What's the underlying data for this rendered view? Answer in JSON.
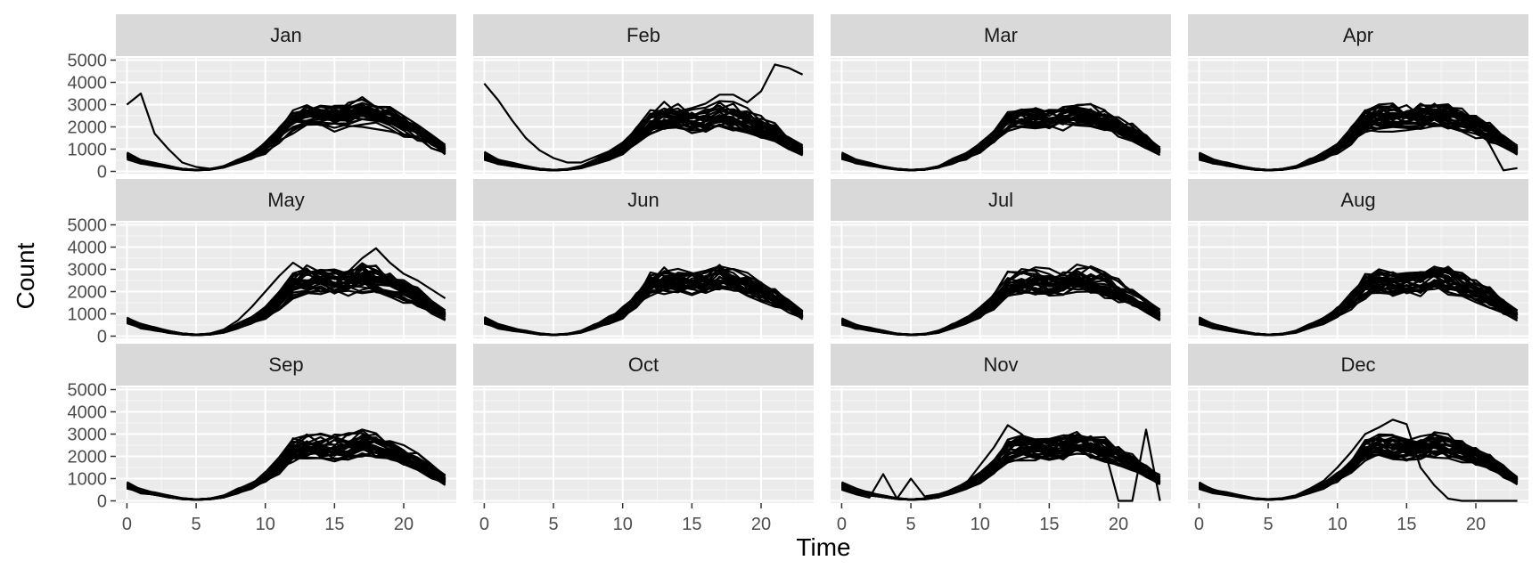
{
  "chart_data": {
    "type": "line",
    "facet": "small-multiples",
    "facets": [
      {
        "label": "Jan",
        "has_data": true
      },
      {
        "label": "Feb",
        "has_data": true
      },
      {
        "label": "Mar",
        "has_data": true
      },
      {
        "label": "Apr",
        "has_data": true
      },
      {
        "label": "May",
        "has_data": true
      },
      {
        "label": "Jun",
        "has_data": true
      },
      {
        "label": "Jul",
        "has_data": true
      },
      {
        "label": "Aug",
        "has_data": true
      },
      {
        "label": "Sep",
        "has_data": true
      },
      {
        "label": "Oct",
        "has_data": false
      },
      {
        "label": "Nov",
        "has_data": true
      },
      {
        "label": "Dec",
        "has_data": true
      }
    ],
    "xlabel": "Time",
    "ylabel": "Count",
    "x_ticks": [
      0,
      5,
      10,
      15,
      20
    ],
    "y_ticks": [
      0,
      1000,
      2000,
      3000,
      4000,
      5000
    ],
    "xlim": [
      -0.8,
      23.8
    ],
    "ylim": [
      -100,
      5100
    ],
    "grid": true,
    "legend": "none",
    "lines_per_facet": 28,
    "line_color": "#000000",
    "panel_background": "#ebebeb",
    "strip_background": "#d9d9d9",
    "typical_daily_profile": {
      "hours": [
        0,
        1,
        2,
        3,
        4,
        5,
        6,
        7,
        8,
        9,
        10,
        11,
        12,
        13,
        14,
        15,
        16,
        17,
        18,
        19,
        20,
        21,
        22,
        23
      ],
      "counts": [
        700,
        450,
        320,
        200,
        100,
        60,
        90,
        200,
        450,
        700,
        1050,
        1600,
        2300,
        2500,
        2450,
        2400,
        2450,
        2650,
        2500,
        2300,
        2050,
        1750,
        1350,
        950
      ]
    },
    "notable_series": [
      {
        "facet": "Jan",
        "hours": [
          0,
          1,
          2,
          3,
          4,
          5,
          6,
          7,
          8,
          9,
          10,
          11,
          12,
          13,
          14,
          15,
          16,
          17,
          18,
          19,
          20,
          21,
          22,
          23
        ],
        "counts": [
          3000,
          3500,
          1700,
          1000,
          400,
          200,
          120,
          220,
          500,
          800,
          1100,
          1550,
          2000,
          2200,
          2200,
          2150,
          2050,
          2000,
          1900,
          1800,
          1650,
          1500,
          1300,
          1100
        ]
      },
      {
        "facet": "Feb",
        "hours": [
          0,
          1,
          2,
          3,
          4,
          5,
          6,
          7,
          8,
          9,
          10,
          11,
          12,
          13,
          14,
          15,
          16,
          17,
          18,
          19,
          20,
          21,
          22,
          23
        ],
        "counts": [
          3950,
          3200,
          2300,
          1500,
          950,
          600,
          400,
          400,
          650,
          900,
          1300,
          1900,
          2450,
          2600,
          2700,
          2850,
          3050,
          3450,
          3450,
          3100,
          3600,
          4800,
          4650,
          4350
        ]
      },
      {
        "facet": "Apr",
        "hours": [
          0,
          1,
          2,
          3,
          4,
          5,
          6,
          7,
          8,
          9,
          10,
          11,
          12,
          13,
          14,
          15,
          16,
          17,
          18,
          19,
          20,
          21,
          22,
          23
        ],
        "counts": [
          600,
          400,
          280,
          150,
          80,
          50,
          80,
          200,
          450,
          700,
          1000,
          1450,
          2000,
          2300,
          2400,
          2500,
          2600,
          2800,
          2700,
          2500,
          2200,
          1200,
          50,
          150
        ]
      },
      {
        "facet": "May",
        "hours": [
          0,
          1,
          2,
          3,
          4,
          5,
          6,
          7,
          8,
          9,
          10,
          11,
          12,
          13,
          14,
          15,
          16,
          17,
          18,
          19,
          20,
          21,
          22,
          23
        ],
        "counts": [
          700,
          450,
          300,
          180,
          90,
          60,
          120,
          300,
          700,
          1300,
          2000,
          2700,
          3300,
          2900,
          2850,
          2800,
          2900,
          3500,
          3950,
          3300,
          2800,
          2500,
          2100,
          1700
        ]
      },
      {
        "facet": "Nov",
        "hours": [
          0,
          1,
          2,
          3,
          4,
          5,
          6,
          7,
          8,
          9,
          10,
          11,
          12,
          13,
          14,
          15,
          16,
          17,
          18,
          19,
          20,
          21,
          22,
          23
        ],
        "counts": [
          500,
          300,
          150,
          1200,
          100,
          1000,
          200,
          300,
          500,
          800,
          1600,
          2400,
          3400,
          3000,
          2400,
          2300,
          2200,
          2400,
          2600,
          2300,
          0,
          0,
          3200,
          0
        ]
      },
      {
        "facet": "Dec",
        "hours": [
          0,
          1,
          2,
          3,
          4,
          5,
          6,
          7,
          8,
          9,
          10,
          11,
          12,
          13,
          14,
          15,
          16,
          17,
          18,
          19,
          20,
          21,
          22,
          23
        ],
        "counts": [
          800,
          500,
          350,
          250,
          120,
          80,
          120,
          250,
          550,
          900,
          1500,
          2200,
          3000,
          3300,
          3650,
          3450,
          1500,
          700,
          100,
          0,
          0,
          0,
          0,
          0
        ]
      }
    ]
  }
}
